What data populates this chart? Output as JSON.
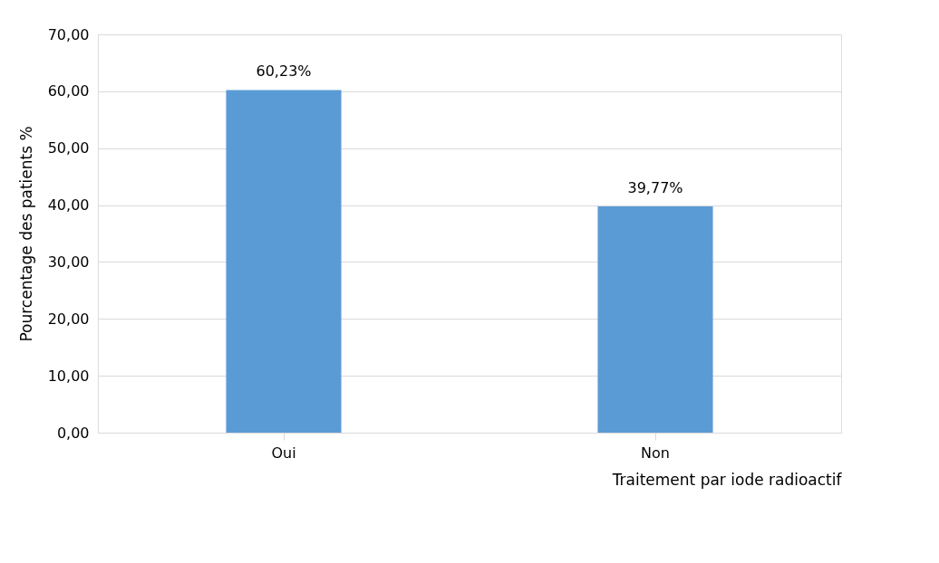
{
  "chart_data": {
    "type": "bar",
    "xlabel": "Traitement par iode radioactif",
    "ylabel": "Pourcentage des patients %",
    "categories": [
      "Oui",
      "Non"
    ],
    "series": [
      {
        "color": "#5b9bd5",
        "values": [
          60.23,
          39.77
        ],
        "value_labels": [
          "60,23%",
          "39,77%"
        ]
      }
    ],
    "ylim": [
      0,
      70
    ],
    "yticks": [
      {
        "value": 0,
        "label": "0,00"
      },
      {
        "value": 10,
        "label": "10,00"
      },
      {
        "value": 20,
        "label": "20,00"
      },
      {
        "value": 30,
        "label": "30,00"
      },
      {
        "value": 40,
        "label": "40,00"
      },
      {
        "value": 50,
        "label": "50,00"
      },
      {
        "value": 60,
        "label": "60,00"
      },
      {
        "value": 70,
        "label": "70,00"
      }
    ],
    "grid": "y"
  }
}
